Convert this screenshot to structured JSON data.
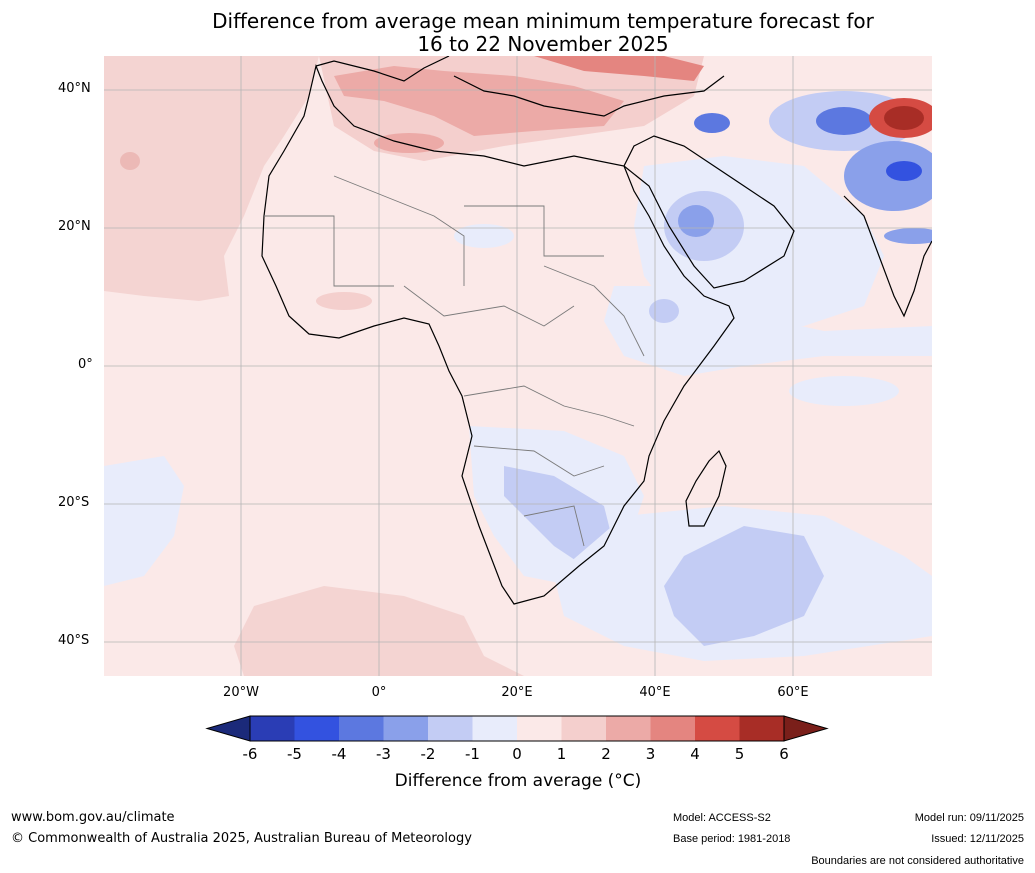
{
  "title_line1": "Difference from average mean minimum temperature forecast for",
  "title_line2": "16 to 22 November 2025",
  "latitude_labels": [
    "40°N",
    "20°N",
    "0°",
    "20°S",
    "40°S"
  ],
  "longitude_labels": [
    "20°W",
    "0°",
    "20°E",
    "40°E",
    "60°E"
  ],
  "colorbar": {
    "ticks": [
      "-6",
      "-5",
      "-4",
      "-3",
      "-2",
      "-1",
      "0",
      "1",
      "2",
      "3",
      "4",
      "5",
      "6"
    ],
    "title": "Difference from average (°C)",
    "colors": [
      "#1b2a7a",
      "#2a3db5",
      "#3352e0",
      "#5c78e0",
      "#8aa0ea",
      "#c3ccf4",
      "#e8ecfb",
      "#fbe9e8",
      "#f4cfcd",
      "#ecaaa7",
      "#e48580",
      "#d54b43",
      "#a82d26",
      "#7a1f1a"
    ]
  },
  "footer": {
    "website": "www.bom.gov.au/climate",
    "copyright": "© Commonwealth of Australia 2025, Australian Bureau of Meteorology",
    "model": "Model: ACCESS-S2",
    "base_period": "Base period: 1981-2018",
    "model_run": "Model run: 09/11/2025",
    "issued": "Issued: 12/11/2025",
    "disclaimer": "Boundaries are not considered authoritative"
  }
}
